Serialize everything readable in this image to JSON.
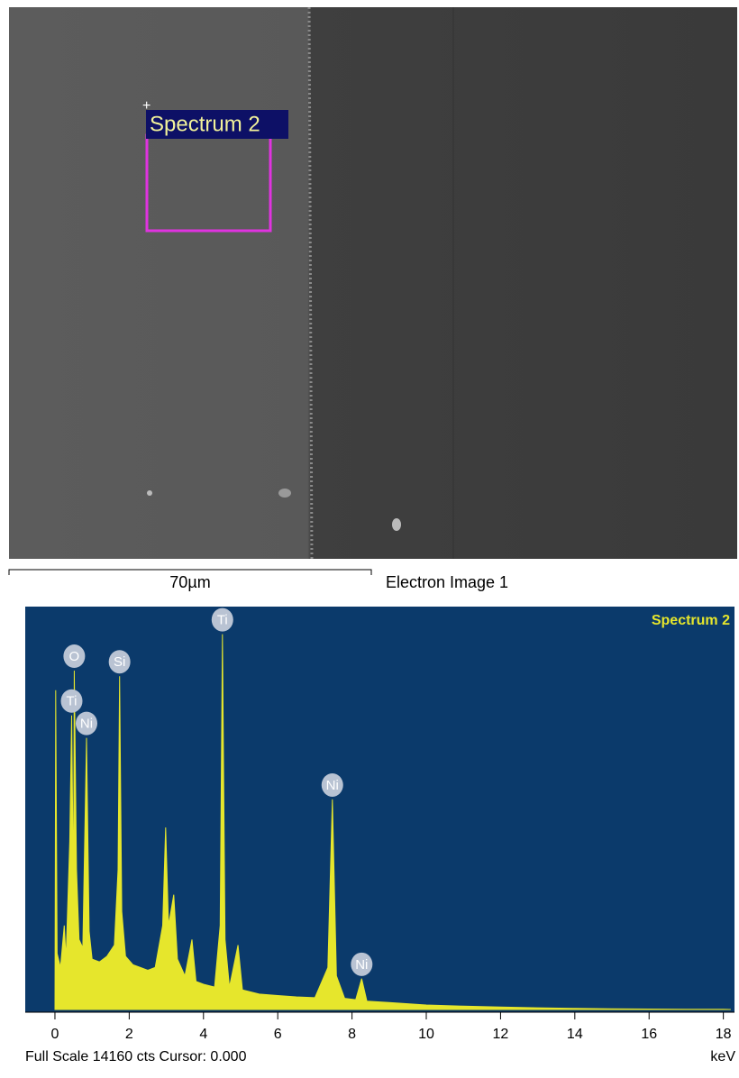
{
  "image": {
    "spectrum_label": "Spectrum 2",
    "scale_bar": "70µm",
    "caption": "Electron Image 1"
  },
  "chart_data": {
    "type": "area",
    "title": "Spectrum 2",
    "color": "#e6e62c",
    "x": [
      0,
      0.02,
      0.06,
      0.15,
      0.25,
      0.3,
      0.4,
      0.45,
      0.5,
      0.52,
      0.58,
      0.65,
      0.75,
      0.85,
      0.92,
      1.0,
      1.2,
      1.4,
      1.6,
      1.7,
      1.74,
      1.8,
      1.9,
      2.1,
      2.3,
      2.5,
      2.7,
      2.9,
      2.98,
      3.06,
      3.2,
      3.3,
      3.5,
      3.69,
      3.8,
      4.0,
      4.3,
      4.45,
      4.51,
      4.58,
      4.7,
      4.93,
      5.05,
      5.5,
      6.0,
      6.5,
      7.0,
      7.35,
      7.47,
      7.58,
      7.8,
      8.1,
      8.26,
      8.4,
      9,
      10,
      11,
      12,
      13,
      14,
      15,
      16,
      17,
      18,
      18.2
    ],
    "values": [
      0,
      11400,
      2000,
      1500,
      3000,
      1800,
      6000,
      10500,
      4000,
      12100,
      5000,
      2500,
      2200,
      9700,
      2800,
      1800,
      1700,
      1900,
      2300,
      5000,
      11900,
      3500,
      1900,
      1600,
      1500,
      1400,
      1500,
      3000,
      6500,
      3000,
      4100,
      1800,
      1200,
      2500,
      1000,
      900,
      800,
      3000,
      13400,
      2500,
      800,
      2300,
      700,
      550,
      500,
      450,
      420,
      1500,
      7500,
      1200,
      400,
      350,
      1100,
      300,
      250,
      160,
      120,
      90,
      60,
      40,
      25,
      15,
      10,
      5,
      0
    ],
    "xlim": [
      -0.8,
      18.3
    ],
    "ylim": [
      0,
      14160
    ],
    "xticks": [
      0,
      2,
      4,
      6,
      8,
      10,
      12,
      14,
      16,
      18
    ],
    "x_label": "keV",
    "footer": "Full Scale 14160 cts Cursor: 0.000",
    "peak_labels": [
      {
        "label": "O",
        "x": 0.52
      },
      {
        "label": "Ti",
        "x": 0.45
      },
      {
        "label": "Ni",
        "x": 0.85
      },
      {
        "label": "Si",
        "x": 1.74
      },
      {
        "label": "Ti",
        "x": 4.51
      },
      {
        "label": "Ni",
        "x": 7.47
      },
      {
        "label": "Ni",
        "x": 8.26
      }
    ]
  }
}
